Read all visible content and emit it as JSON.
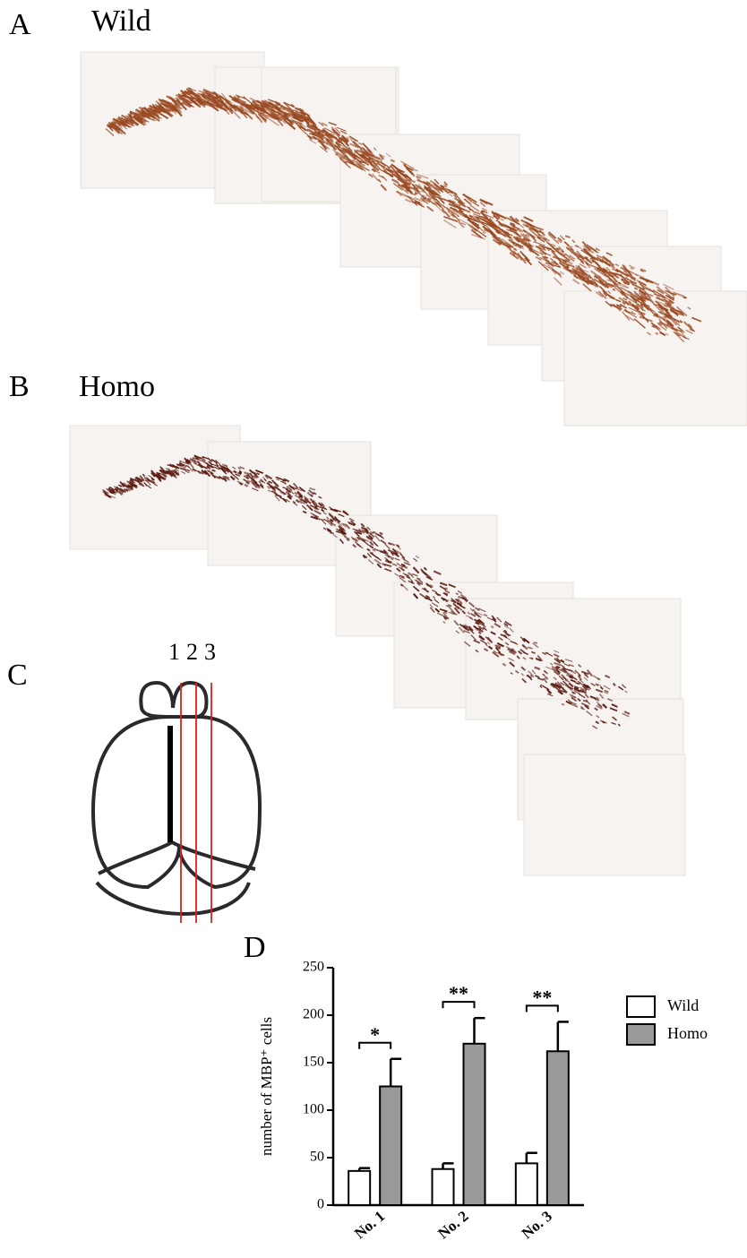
{
  "panels": {
    "a": {
      "label": "A",
      "title": "Wild"
    },
    "b": {
      "label": "B",
      "title": "Homo"
    },
    "c": {
      "label": "C",
      "lines": [
        "1",
        "2",
        "3"
      ]
    },
    "d": {
      "label": "D"
    }
  },
  "chart_data": {
    "type": "bar",
    "y_label": "number of MBP⁺ cells",
    "categories": [
      "No. 1",
      "No. 2",
      "No. 3"
    ],
    "series": [
      {
        "name": "Wild",
        "color": "#ffffff",
        "values": [
          36,
          38,
          44
        ],
        "errors": [
          3,
          6,
          11
        ]
      },
      {
        "name": "Homo",
        "color": "#999999",
        "values": [
          125,
          170,
          162
        ],
        "errors": [
          29,
          27,
          31
        ]
      }
    ],
    "significance": [
      "*",
      "**",
      "**"
    ],
    "ylim": [
      0,
      250
    ],
    "yticks": [
      0,
      50,
      100,
      150,
      200,
      250
    ],
    "grid": false,
    "legend": "right"
  }
}
